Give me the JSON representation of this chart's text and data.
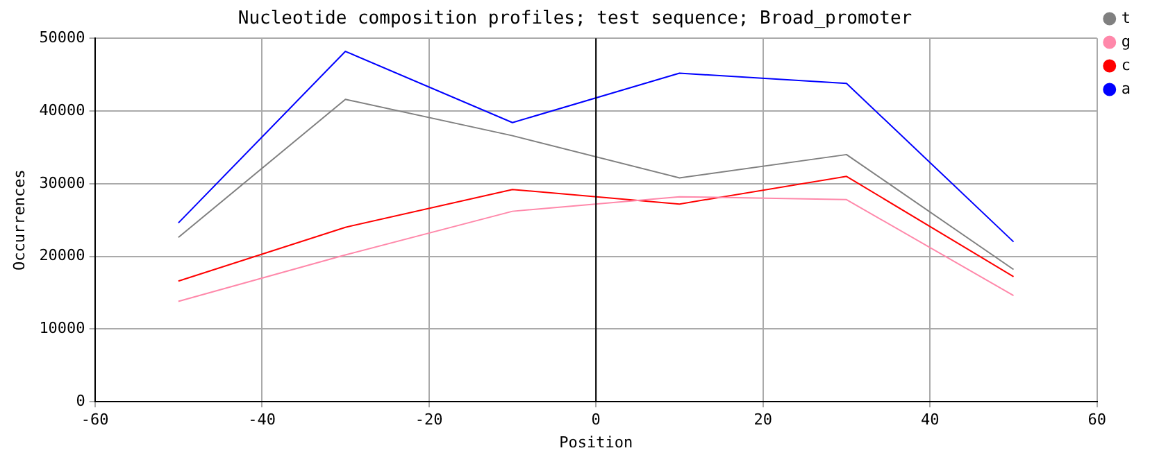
{
  "chart_data": {
    "type": "line",
    "title": "Nucleotide composition profiles; test sequence; Broad_promoter",
    "xlabel": "Position",
    "ylabel": "Occurrences",
    "x": [
      -50,
      -30,
      -10,
      10,
      30,
      50
    ],
    "series": [
      {
        "name": "t",
        "color": "#808080",
        "values": [
          22600,
          41600,
          36600,
          30800,
          34000,
          18200
        ]
      },
      {
        "name": "g",
        "color": "#ff88aa",
        "values": [
          13800,
          20200,
          26200,
          28200,
          27800,
          14600
        ]
      },
      {
        "name": "c",
        "color": "#ff0000",
        "values": [
          16600,
          24000,
          29200,
          27200,
          31000,
          17200
        ]
      },
      {
        "name": "a",
        "color": "#0000ff",
        "values": [
          24600,
          48200,
          38400,
          45200,
          43800,
          22000
        ]
      }
    ],
    "xlim": [
      -60,
      60
    ],
    "xticks": [
      -60,
      -40,
      -20,
      0,
      20,
      40,
      60
    ],
    "ylim": [
      0,
      50000
    ],
    "yticks": [
      0,
      10000,
      20000,
      30000,
      40000,
      50000
    ],
    "ref_lines": [
      {
        "axis": "x",
        "value": 0,
        "color": "#000000"
      }
    ],
    "grid": true,
    "legend": "top right",
    "marker": "none",
    "line_style": "solid"
  }
}
